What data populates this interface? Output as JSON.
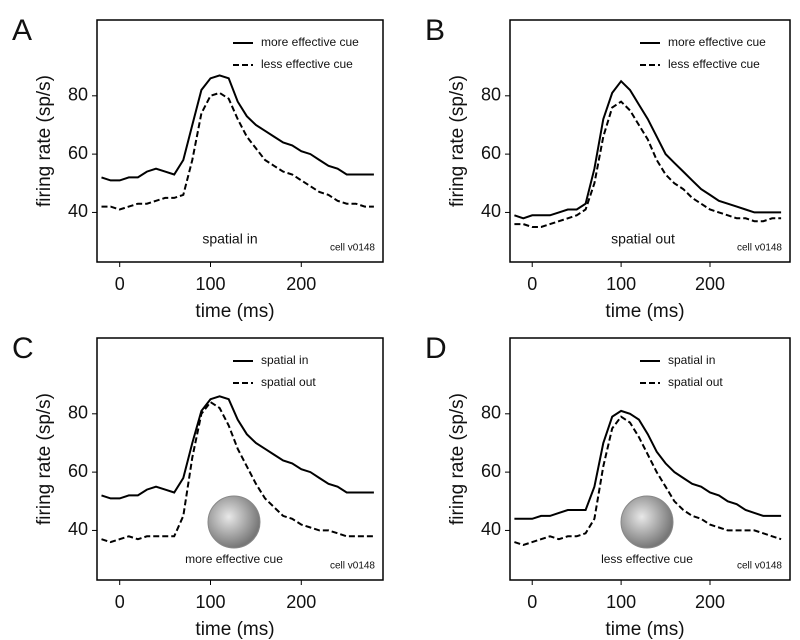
{
  "chart_data": [
    {
      "type": "line",
      "panel": "A",
      "xlabel": "time (ms)",
      "ylabel": "firing rate (sp/s)",
      "x": [
        -20,
        -10,
        0,
        10,
        20,
        30,
        40,
        50,
        60,
        70,
        80,
        90,
        100,
        110,
        120,
        130,
        140,
        150,
        160,
        170,
        180,
        190,
        200,
        210,
        220,
        230,
        240,
        250,
        260,
        270,
        280
      ],
      "series": [
        {
          "name": "more effective cue",
          "color": "#000000",
          "dashed": false,
          "values": [
            52,
            51,
            51,
            52,
            52,
            54,
            55,
            54,
            53,
            58,
            70,
            82,
            86,
            87,
            86,
            78,
            73,
            70,
            68,
            66,
            64,
            63,
            61,
            60,
            58,
            56,
            55,
            53,
            53,
            53,
            53
          ]
        },
        {
          "name": "less effective cue",
          "color": "#000000",
          "dashed": true,
          "values": [
            42,
            42,
            41,
            42,
            43,
            43,
            44,
            45,
            45,
            46,
            58,
            74,
            80,
            81,
            79,
            72,
            66,
            62,
            58,
            56,
            54,
            53,
            51,
            49,
            47,
            46,
            44,
            43,
            43,
            42,
            42
          ]
        }
      ],
      "xlim": [
        -25,
        290
      ],
      "ylim": [
        23,
        106
      ],
      "xticks": [
        0,
        100,
        200
      ],
      "yticks": [
        40,
        60,
        80
      ],
      "legend": "upper right",
      "annotation": "spatial in",
      "cell": "cell v0148",
      "inset_image": false
    },
    {
      "type": "line",
      "panel": "B",
      "xlabel": "time (ms)",
      "ylabel": "firing rate (sp/s)",
      "x": [
        -20,
        -10,
        0,
        10,
        20,
        30,
        40,
        50,
        60,
        70,
        80,
        90,
        100,
        110,
        120,
        130,
        140,
        150,
        160,
        170,
        180,
        190,
        200,
        210,
        220,
        230,
        240,
        250,
        260,
        270,
        280
      ],
      "series": [
        {
          "name": "more effective cue",
          "color": "#000000",
          "dashed": false,
          "values": [
            39,
            38,
            39,
            39,
            39,
            40,
            41,
            41,
            43,
            55,
            72,
            81,
            85,
            82,
            77,
            72,
            66,
            60,
            57,
            54,
            51,
            48,
            46,
            44,
            43,
            42,
            41,
            40,
            40,
            40,
            40
          ]
        },
        {
          "name": "less effective cue",
          "color": "#000000",
          "dashed": true,
          "values": [
            36,
            36,
            35,
            35,
            36,
            37,
            38,
            39,
            41,
            50,
            66,
            76,
            78,
            75,
            70,
            65,
            58,
            53,
            50,
            48,
            45,
            43,
            41,
            40,
            39,
            38,
            38,
            37,
            37,
            38,
            38
          ]
        }
      ],
      "xlim": [
        -25,
        290
      ],
      "ylim": [
        23,
        106
      ],
      "xticks": [
        0,
        100,
        200
      ],
      "yticks": [
        40,
        60,
        80
      ],
      "legend": "upper right",
      "annotation": "spatial out",
      "cell": "cell v0148",
      "inset_image": false
    },
    {
      "type": "line",
      "panel": "C",
      "xlabel": "time (ms)",
      "ylabel": "firing rate (sp/s)",
      "x": [
        -20,
        -10,
        0,
        10,
        20,
        30,
        40,
        50,
        60,
        70,
        80,
        90,
        100,
        110,
        120,
        130,
        140,
        150,
        160,
        170,
        180,
        190,
        200,
        210,
        220,
        230,
        240,
        250,
        260,
        270,
        280
      ],
      "series": [
        {
          "name": "spatial in",
          "color": "#000000",
          "dashed": false,
          "values": [
            52,
            51,
            51,
            52,
            52,
            54,
            55,
            54,
            53,
            58,
            70,
            81,
            85,
            86,
            85,
            78,
            73,
            70,
            68,
            66,
            64,
            63,
            61,
            60,
            58,
            56,
            55,
            53,
            53,
            53,
            53
          ]
        },
        {
          "name": "spatial out",
          "color": "#000000",
          "dashed": true,
          "values": [
            37,
            36,
            37,
            38,
            37,
            38,
            38,
            38,
            38,
            45,
            65,
            80,
            84,
            82,
            76,
            68,
            62,
            56,
            51,
            48,
            45,
            44,
            42,
            41,
            40,
            40,
            39,
            38,
            38,
            38,
            38
          ]
        }
      ],
      "xlim": [
        -25,
        290
      ],
      "ylim": [
        23,
        106
      ],
      "xticks": [
        0,
        100,
        200
      ],
      "yticks": [
        40,
        60,
        80
      ],
      "legend": "upper right",
      "annotation": "more effective cue",
      "cell": "cell v0148",
      "inset_image": true
    },
    {
      "type": "line",
      "panel": "D",
      "xlabel": "time (ms)",
      "ylabel": "firing rate (sp/s)",
      "x": [
        -20,
        -10,
        0,
        10,
        20,
        30,
        40,
        50,
        60,
        70,
        80,
        90,
        100,
        110,
        120,
        130,
        140,
        150,
        160,
        170,
        180,
        190,
        200,
        210,
        220,
        230,
        240,
        250,
        260,
        270,
        280
      ],
      "series": [
        {
          "name": "spatial in",
          "color": "#000000",
          "dashed": false,
          "values": [
            44,
            44,
            44,
            45,
            45,
            46,
            47,
            47,
            47,
            55,
            70,
            79,
            81,
            80,
            78,
            73,
            67,
            63,
            60,
            58,
            56,
            55,
            53,
            52,
            50,
            49,
            47,
            46,
            45,
            45,
            45
          ]
        },
        {
          "name": "spatial out",
          "color": "#000000",
          "dashed": true,
          "values": [
            36,
            35,
            36,
            37,
            38,
            37,
            38,
            38,
            39,
            44,
            62,
            75,
            79,
            77,
            72,
            66,
            60,
            55,
            50,
            47,
            45,
            44,
            42,
            41,
            40,
            40,
            40,
            40,
            39,
            38,
            37
          ]
        }
      ],
      "xlim": [
        -25,
        290
      ],
      "ylim": [
        23,
        106
      ],
      "xticks": [
        0,
        100,
        200
      ],
      "yticks": [
        40,
        60,
        80
      ],
      "legend": "upper right",
      "annotation": "less effective cue",
      "cell": "cell v0148",
      "inset_image": true
    }
  ]
}
